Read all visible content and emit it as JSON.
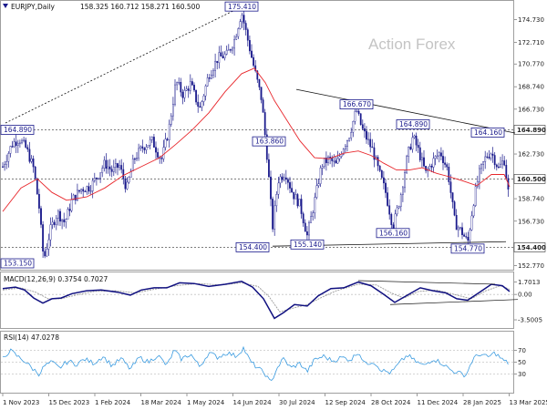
{
  "header": {
    "instrument": "EURJPY,Daily",
    "ohlc": "158.325 160.712 158.271 160.500",
    "macd_title": "MACD(12,26,9) 0.3754 0.7027",
    "rsi_title": "RSI(14) 47.0278"
  },
  "watermark": "Action Forex",
  "colors": {
    "candle": "#1a1a8c",
    "ma": "#e8262b",
    "macd": "#101080",
    "signal": "#9a9a9a",
    "rsi": "#3a9be0",
    "trend": "#111111"
  },
  "chart_data": [
    {
      "type": "candlestick",
      "name": "price",
      "ylim": [
        152.4,
        176.4
      ],
      "yticks": [
        "174.730",
        "172.710",
        "170.770",
        "168.740",
        "166.730",
        "164.890",
        "162.730",
        "160.500",
        "158.740",
        "156.730",
        "154.400",
        "152.770"
      ],
      "ytick_values": [
        174.73,
        172.71,
        170.77,
        168.74,
        166.73,
        164.89,
        162.73,
        160.5,
        158.74,
        156.73,
        154.4,
        152.77
      ],
      "tagged_levels": [
        "164.890",
        "160.500",
        "154.400"
      ],
      "x_dates": [
        "1 Nov 2023",
        "15 Dec 2023",
        "1 Feb 2024",
        "18 Mar 2024",
        "1 May 2024",
        "14 Jun 2024",
        "30 Jul 2024",
        "12 Sep 2024",
        "28 Oct 2024",
        "11 Dec 2024",
        "28 Jan 2025",
        "13 Mar 2025"
      ],
      "close_path": [
        [
          0,
          161.6
        ],
        [
          10,
          163.6
        ],
        [
          18,
          164.1
        ],
        [
          26,
          163.2
        ],
        [
          34,
          161.4
        ],
        [
          40,
          157.9
        ],
        [
          45,
          153.2
        ],
        [
          52,
          155.9
        ],
        [
          60,
          157.5
        ],
        [
          68,
          156.6
        ],
        [
          76,
          158.6
        ],
        [
          86,
          159.6
        ],
        [
          96,
          159.8
        ],
        [
          104,
          160.8
        ],
        [
          112,
          161.9
        ],
        [
          120,
          161.2
        ],
        [
          128,
          161.7
        ],
        [
          136,
          159.6
        ],
        [
          144,
          162.3
        ],
        [
          154,
          163.4
        ],
        [
          164,
          163.9
        ],
        [
          174,
          162.2
        ],
        [
          182,
          164.8
        ],
        [
          190,
          169.2
        ],
        [
          198,
          168.0
        ],
        [
          206,
          169.0
        ],
        [
          216,
          166.7
        ],
        [
          226,
          169.8
        ],
        [
          236,
          171.3
        ],
        [
          246,
          171.6
        ],
        [
          254,
          172.9
        ],
        [
          262,
          175.4
        ],
        [
          268,
          173.2
        ],
        [
          276,
          170.3
        ],
        [
          284,
          167.6
        ],
        [
          290,
          162.5
        ],
        [
          296,
          156.2
        ],
        [
          302,
          160.4
        ],
        [
          310,
          161.1
        ],
        [
          318,
          159.2
        ],
        [
          326,
          158.2
        ],
        [
          334,
          155.4
        ],
        [
          342,
          158.5
        ],
        [
          350,
          161.8
        ],
        [
          358,
          162.3
        ],
        [
          366,
          161.7
        ],
        [
          372,
          163.1
        ],
        [
          380,
          164.4
        ],
        [
          388,
          166.7
        ],
        [
          394,
          165.0
        ],
        [
          400,
          164.0
        ],
        [
          406,
          163.0
        ],
        [
          412,
          161.3
        ],
        [
          420,
          159.3
        ],
        [
          428,
          156.2
        ],
        [
          436,
          158.8
        ],
        [
          444,
          162.6
        ],
        [
          450,
          164.3
        ],
        [
          456,
          163.0
        ],
        [
          464,
          161.0
        ],
        [
          472,
          162.1
        ],
        [
          480,
          162.9
        ],
        [
          488,
          161.3
        ],
        [
          496,
          156.6
        ],
        [
          504,
          155.7
        ],
        [
          510,
          154.8
        ],
        [
          516,
          158.3
        ],
        [
          522,
          160.8
        ],
        [
          530,
          162.5
        ],
        [
          536,
          162.9
        ],
        [
          544,
          161.4
        ],
        [
          550,
          162.3
        ],
        [
          556,
          158.3
        ]
      ],
      "ma_path": [
        [
          0,
          157.6
        ],
        [
          20,
          159.7
        ],
        [
          38,
          160.5
        ],
        [
          54,
          159.3
        ],
        [
          70,
          158.6
        ],
        [
          92,
          158.9
        ],
        [
          112,
          159.7
        ],
        [
          132,
          160.8
        ],
        [
          152,
          161.6
        ],
        [
          172,
          162.4
        ],
        [
          190,
          163.6
        ],
        [
          208,
          164.9
        ],
        [
          226,
          166.4
        ],
        [
          244,
          168.3
        ],
        [
          262,
          169.9
        ],
        [
          276,
          170.4
        ],
        [
          288,
          169.1
        ],
        [
          298,
          167.5
        ],
        [
          312,
          165.7
        ],
        [
          326,
          163.9
        ],
        [
          342,
          162.4
        ],
        [
          358,
          162.3
        ],
        [
          374,
          162.8
        ],
        [
          390,
          163.0
        ],
        [
          404,
          162.6
        ],
        [
          418,
          161.9
        ],
        [
          432,
          161.3
        ],
        [
          446,
          161.3
        ],
        [
          460,
          161.5
        ],
        [
          476,
          161.0
        ],
        [
          490,
          160.7
        ],
        [
          506,
          160.3
        ],
        [
          520,
          159.9
        ],
        [
          536,
          160.9
        ],
        [
          550,
          160.9
        ],
        [
          556,
          159.8
        ]
      ],
      "trendlines": [
        [
          [
            3,
            165.5
          ],
          [
            265,
            176.0
          ]
        ],
        [
          [
            322,
            168.5
          ],
          [
            562,
            164.6
          ]
        ],
        [
          [
            296,
            154.5
          ],
          [
            552,
            154.9
          ]
        ]
      ],
      "hlines": [
        164.89,
        160.5,
        154.4
      ],
      "annotations": [
        {
          "text": "175.410",
          "x": 262,
          "y": 175.41
        },
        {
          "text": "166.670",
          "x": 388,
          "y": 166.67
        },
        {
          "text": "164.890",
          "x": 450,
          "y": 164.89
        },
        {
          "text": "164.160",
          "x": 532,
          "y": 164.16
        },
        {
          "text": "163.860",
          "x": 296,
          "y": 163.86
        },
        {
          "text": "155.140",
          "x": 334,
          "y": 155.14
        },
        {
          "text": "156.160",
          "x": 428,
          "y": 156.16
        },
        {
          "text": "154.770",
          "x": 510,
          "y": 154.77
        },
        {
          "text": "154.400",
          "x": 296,
          "y": 154.4
        },
        {
          "text": "153.150",
          "x": 45,
          "y": 153.15
        },
        {
          "text": "164.890",
          "x": 0,
          "y": 164.89
        }
      ]
    },
    {
      "type": "line",
      "name": "MACD(12,26,9)",
      "ylim": [
        -4.5,
        2.9
      ],
      "yticks": [
        "1.7013",
        "0.00",
        "-3.5005"
      ],
      "ytick_values": [
        1.7013,
        0,
        -3.5005
      ],
      "macd_path": [
        [
          0,
          0.8
        ],
        [
          14,
          1.0
        ],
        [
          24,
          0.6
        ],
        [
          34,
          -0.5
        ],
        [
          44,
          -1.2
        ],
        [
          54,
          -0.6
        ],
        [
          64,
          -0.5
        ],
        [
          76,
          0.1
        ],
        [
          92,
          0.5
        ],
        [
          108,
          0.6
        ],
        [
          126,
          0.3
        ],
        [
          140,
          -0.1
        ],
        [
          152,
          0.6
        ],
        [
          166,
          0.9
        ],
        [
          180,
          0.9
        ],
        [
          194,
          1.6
        ],
        [
          210,
          1.5
        ],
        [
          226,
          1.1
        ],
        [
          244,
          1.4
        ],
        [
          262,
          1.8
        ],
        [
          274,
          1.0
        ],
        [
          286,
          -0.6
        ],
        [
          298,
          -3.3
        ],
        [
          308,
          -2.5
        ],
        [
          320,
          -1.4
        ],
        [
          334,
          -1.6
        ],
        [
          346,
          -0.2
        ],
        [
          360,
          0.8
        ],
        [
          374,
          0.9
        ],
        [
          390,
          1.7
        ],
        [
          404,
          1.2
        ],
        [
          418,
          0.0
        ],
        [
          430,
          -1.1
        ],
        [
          444,
          -0.1
        ],
        [
          458,
          0.9
        ],
        [
          472,
          0.5
        ],
        [
          486,
          0.2
        ],
        [
          498,
          -0.6
        ],
        [
          510,
          -0.8
        ],
        [
          522,
          0.2
        ],
        [
          536,
          1.4
        ],
        [
          548,
          1.2
        ],
        [
          556,
          0.4
        ]
      ],
      "signal_path": [
        [
          0,
          0.6
        ],
        [
          20,
          0.9
        ],
        [
          36,
          0.3
        ],
        [
          50,
          -0.6
        ],
        [
          64,
          -0.6
        ],
        [
          80,
          -0.1
        ],
        [
          100,
          0.4
        ],
        [
          124,
          0.5
        ],
        [
          146,
          0.2
        ],
        [
          166,
          0.7
        ],
        [
          190,
          1.2
        ],
        [
          214,
          1.5
        ],
        [
          240,
          1.3
        ],
        [
          262,
          1.6
        ],
        [
          280,
          1.1
        ],
        [
          292,
          -0.3
        ],
        [
          304,
          -2.4
        ],
        [
          318,
          -1.9
        ],
        [
          334,
          -1.4
        ],
        [
          350,
          -0.4
        ],
        [
          366,
          0.5
        ],
        [
          390,
          1.4
        ],
        [
          410,
          1.3
        ],
        [
          426,
          0.2
        ],
        [
          440,
          -0.5
        ],
        [
          456,
          0.4
        ],
        [
          476,
          0.6
        ],
        [
          498,
          -0.1
        ],
        [
          514,
          -0.6
        ],
        [
          530,
          0.5
        ],
        [
          546,
          1.2
        ],
        [
          556,
          0.7
        ]
      ],
      "trendlines": [
        [
          [
            390,
            1.9
          ],
          [
            540,
            1.4
          ]
        ],
        [
          [
            425,
            -1.4
          ],
          [
            565,
            -0.7
          ]
        ]
      ]
    },
    {
      "type": "line",
      "name": "RSI(14)",
      "ylim": [
        0,
        100
      ],
      "yticks": [
        "70",
        "50",
        "30"
      ],
      "ytick_values": [
        70,
        50,
        30
      ],
      "rsi_path": [
        [
          0,
          56
        ],
        [
          8,
          70
        ],
        [
          16,
          60
        ],
        [
          24,
          52
        ],
        [
          32,
          40
        ],
        [
          40,
          30
        ],
        [
          46,
          44
        ],
        [
          54,
          50
        ],
        [
          62,
          40
        ],
        [
          72,
          52
        ],
        [
          80,
          46
        ],
        [
          90,
          55
        ],
        [
          100,
          48
        ],
        [
          110,
          60
        ],
        [
          120,
          44
        ],
        [
          130,
          56
        ],
        [
          140,
          38
        ],
        [
          150,
          58
        ],
        [
          160,
          50
        ],
        [
          170,
          62
        ],
        [
          180,
          44
        ],
        [
          188,
          70
        ],
        [
          196,
          55
        ],
        [
          206,
          64
        ],
        [
          216,
          42
        ],
        [
          226,
          66
        ],
        [
          236,
          58
        ],
        [
          246,
          66
        ],
        [
          256,
          60
        ],
        [
          264,
          74
        ],
        [
          272,
          50
        ],
        [
          280,
          40
        ],
        [
          288,
          30
        ],
        [
          294,
          14
        ],
        [
          300,
          38
        ],
        [
          308,
          56
        ],
        [
          316,
          40
        ],
        [
          326,
          48
        ],
        [
          334,
          34
        ],
        [
          342,
          54
        ],
        [
          352,
          60
        ],
        [
          362,
          52
        ],
        [
          372,
          58
        ],
        [
          382,
          54
        ],
        [
          390,
          68
        ],
        [
          398,
          46
        ],
        [
          406,
          52
        ],
        [
          416,
          36
        ],
        [
          426,
          32
        ],
        [
          436,
          50
        ],
        [
          444,
          62
        ],
        [
          452,
          52
        ],
        [
          462,
          44
        ],
        [
          472,
          56
        ],
        [
          482,
          48
        ],
        [
          492,
          36
        ],
        [
          500,
          32
        ],
        [
          508,
          28
        ],
        [
          516,
          56
        ],
        [
          524,
          64
        ],
        [
          532,
          58
        ],
        [
          540,
          66
        ],
        [
          548,
          54
        ],
        [
          556,
          47
        ]
      ]
    }
  ]
}
